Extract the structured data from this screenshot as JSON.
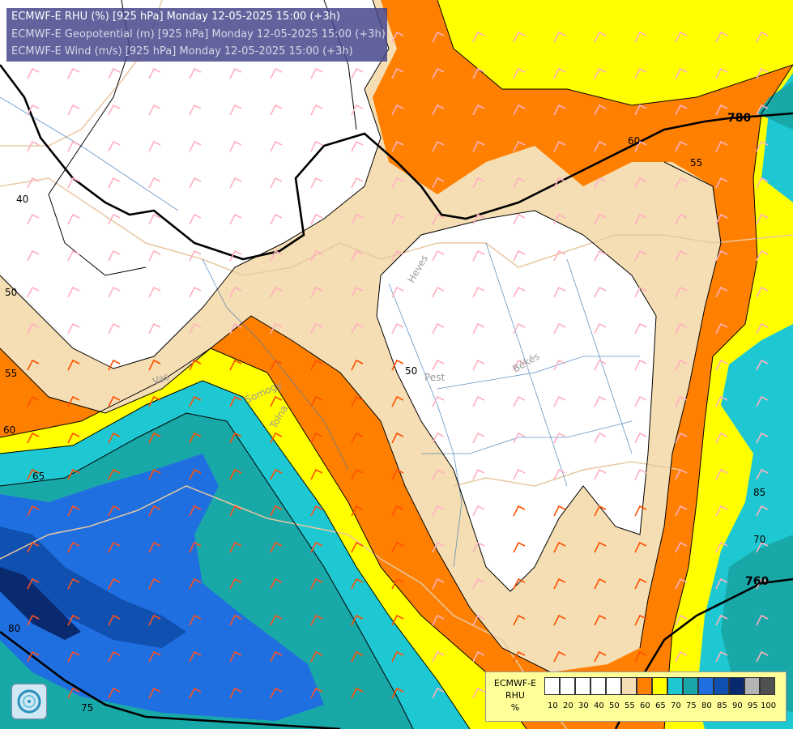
{
  "header": {
    "line1": "ECMWF-E RHU (%) [925 hPa] Monday 12-05-2025 15:00 (+3h)",
    "line2": "ECMWF-E Geopotential (m) [925 hPa] Monday 12-05-2025 15:00 (+3h)",
    "line3": "ECMWF-E Wind (m/s) [925 hPa] Monday 12-05-2025 15:00 (+3h)"
  },
  "map_labels": {
    "geo_780": "780",
    "geo_760": "760",
    "rh_40": "40",
    "rh_50a": "50",
    "rh_50b": "50",
    "rh_55a": "55",
    "rh_55b": "55",
    "rh_60a": "60",
    "rh_60b": "60",
    "rh_65": "65",
    "rh_70": "70",
    "rh_75": "75",
    "rh_80": "80",
    "rh_85": "85",
    "county_heves": "Heves",
    "county_pest": "Pest",
    "county_bekes": "Békés",
    "river_somogy": "Somogy",
    "river_tolna": "Tolna",
    "river_vas": "Vas"
  },
  "legend": {
    "title_line1": "ECMWF-E",
    "title_line2": "RHU",
    "title_line3": "%",
    "labels": [
      "10",
      "20",
      "30",
      "40",
      "50",
      "55",
      "60",
      "65",
      "70",
      "75",
      "80",
      "85",
      "90",
      "95",
      "100"
    ],
    "colors": [
      "#ffffff",
      "#ffffff",
      "#ffffff",
      "#ffffff",
      "#ffffff",
      "#f5deb3",
      "#ff8000",
      "#ffff00",
      "#1ec8d2",
      "#1aa6a8",
      "#1f6fe0",
      "#1050b0",
      "#0a2a70",
      "#b4b4b4",
      "#505050"
    ]
  },
  "colors": {
    "white": "#ffffff",
    "wheat": "#f5deb3",
    "orange": "#ff8000",
    "yellow": "#ffff00",
    "cyan": "#1ec8d2",
    "teal": "#18a8a8",
    "blue": "#1f6fe0",
    "navy": "#1050b0",
    "darknavy": "#0a2a70"
  }
}
